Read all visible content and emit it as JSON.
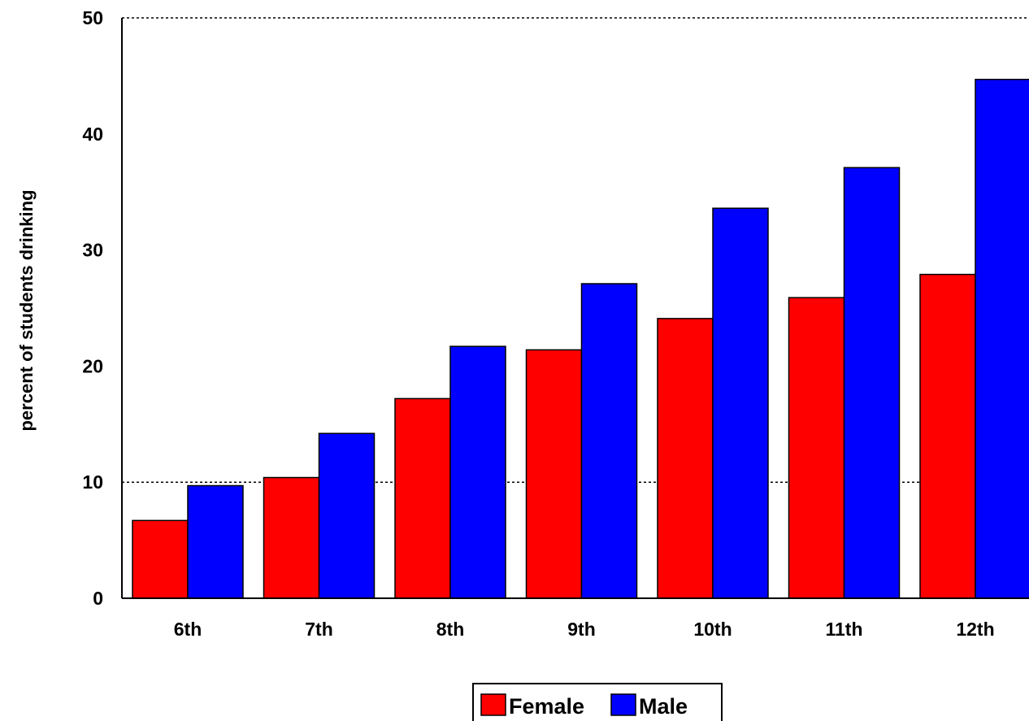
{
  "chart_data": {
    "type": "bar",
    "title": "",
    "xlabel": "",
    "ylabel": "percent of students drinking",
    "categories": [
      "6th",
      "7th",
      "8th",
      "9th",
      "10th",
      "11th",
      "12th"
    ],
    "series": [
      {
        "name": "Female",
        "color": "#ff0000",
        "values": [
          6.7,
          10.4,
          17.2,
          21.4,
          24.1,
          25.9,
          27.9
        ]
      },
      {
        "name": "Male",
        "color": "#0000ff",
        "values": [
          9.7,
          14.2,
          21.7,
          27.1,
          33.6,
          37.1,
          44.7
        ]
      }
    ],
    "ylim": [
      0,
      50
    ],
    "yticks": [
      0,
      10,
      20,
      30,
      40,
      50
    ],
    "grid": "dotted lines at 10 and 50",
    "legend": "bottom-center"
  }
}
